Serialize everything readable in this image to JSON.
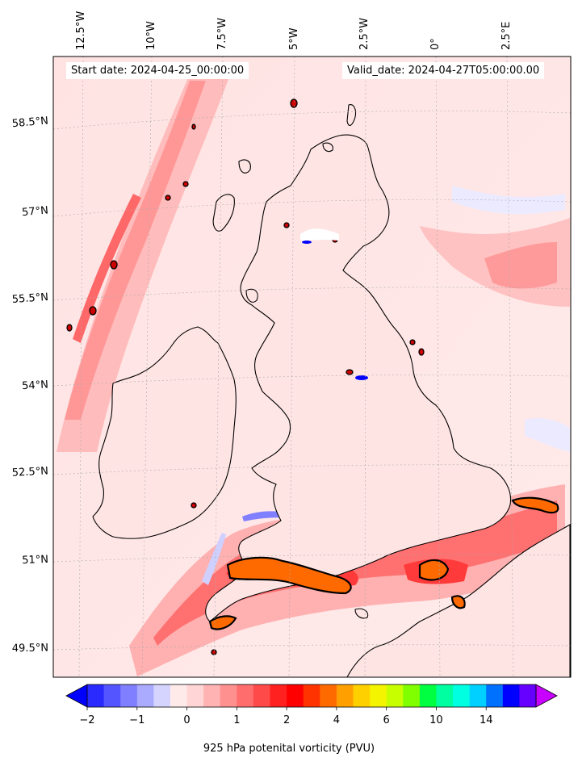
{
  "map": {
    "start_date": "Start date: 2024-04-25_00:00:00",
    "valid_date": "Valid_date: 2024-04-27T05:00:00.00",
    "lon_labels": [
      "12.5°W",
      "10°W",
      "7.5°W",
      "5°W",
      "2.5°W",
      "0°",
      "2.5°E"
    ],
    "lat_labels": [
      "58.5°N",
      "57°N",
      "55.5°N",
      "54°N",
      "52.5°N",
      "51°N",
      "49.5°N"
    ]
  },
  "colorbar": {
    "label": "925 hPa potenital vorticity (PVU)",
    "ticks": [
      "−2",
      "−1",
      "0",
      "1",
      "2",
      "4",
      "6",
      "10",
      "14"
    ],
    "colors": [
      "#0000ff",
      "#2a2aff",
      "#5555ff",
      "#7f7fff",
      "#aaaaff",
      "#d4d4ff",
      "#ffeaea",
      "#ffd5d5",
      "#ffb3b3",
      "#ff9090",
      "#ff6d6d",
      "#ff4a4a",
      "#ff2020",
      "#ff0000",
      "#ff3300",
      "#ff6a00",
      "#ffa000",
      "#ffd000",
      "#f4f400",
      "#c8ff00",
      "#7fff00",
      "#00ff40",
      "#00ffa0",
      "#00ffe0",
      "#00d0ff",
      "#0070ff",
      "#0000ff",
      "#6600ff",
      "#c800ff"
    ],
    "tick_positions": [
      0,
      3,
      6,
      9,
      12,
      15,
      18,
      21,
      24
    ]
  },
  "colors": {
    "background_pv": "#ffe8e8",
    "coast": "#000000",
    "high_pv_contour": "#ff6a00"
  }
}
